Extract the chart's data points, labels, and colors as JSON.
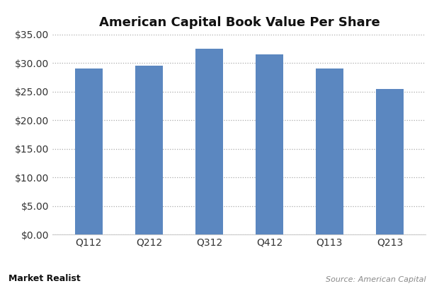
{
  "title": "American Capital Book Value Per Share",
  "categories": [
    "Q112",
    "Q212",
    "Q312",
    "Q412",
    "Q113",
    "Q213"
  ],
  "values": [
    29.0,
    29.5,
    32.5,
    31.5,
    29.0,
    25.5
  ],
  "bar_color": "#5b87c0",
  "ylim": [
    0,
    35
  ],
  "yticks": [
    0,
    5,
    10,
    15,
    20,
    25,
    30,
    35
  ],
  "background_color": "#ffffff",
  "grid_color": "#aaaaaa",
  "title_fontsize": 13,
  "tick_fontsize": 10,
  "source_text": "Source: American Capital",
  "watermark_text": "Market Realist"
}
